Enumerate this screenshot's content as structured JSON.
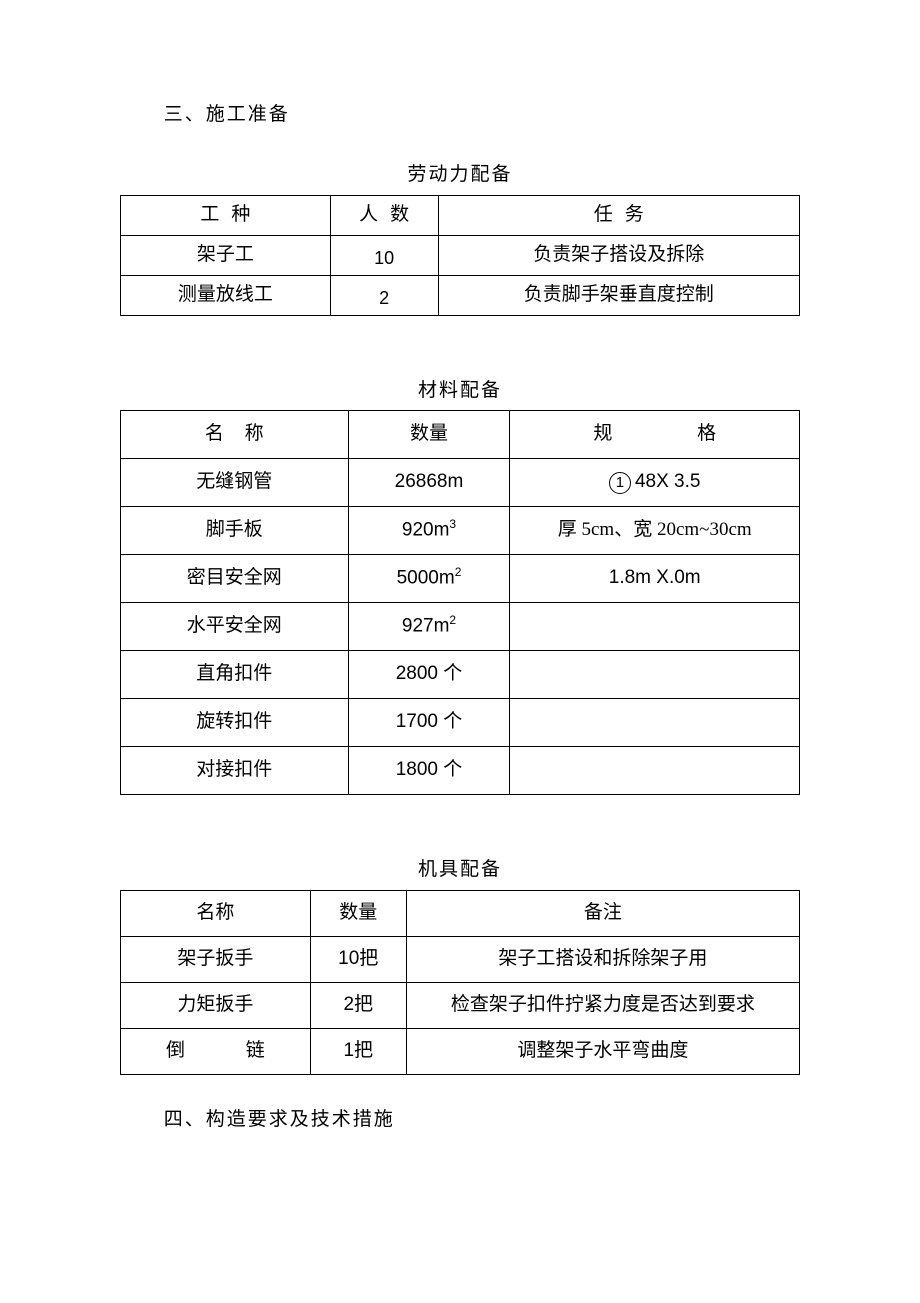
{
  "section3": {
    "heading": "三、施工准备",
    "table": {
      "title": "劳动力配备",
      "columns": [
        "工种",
        "人数",
        "任务"
      ],
      "rows": [
        {
          "type": "架子工",
          "count": "10",
          "task": "负责架子搭设及拆除"
        },
        {
          "type": "测量放线工",
          "count": "2",
          "task": "负责脚手架垂直度控制"
        }
      ]
    }
  },
  "materials": {
    "title": "材料配备",
    "columns": {
      "name": "名 称",
      "qty": "数量",
      "spec": "规    格"
    },
    "rows": [
      {
        "name": "无缝钢管",
        "qty_html": "26868m",
        "spec_circle": "1",
        "spec": "48X 3.5"
      },
      {
        "name": "脚手板",
        "qty_val": "920m",
        "qty_sup": "3",
        "spec": "厚 5cm、宽 20cm~30cm"
      },
      {
        "name": "密目安全网",
        "qty_val": "5000m",
        "qty_sup": "2",
        "spec": "1.8m X.0m"
      },
      {
        "name": "水平安全网",
        "qty_val": "927m",
        "qty_sup": "2",
        "spec": ""
      },
      {
        "name": "直角扣件",
        "qty_html": "2800 个",
        "spec": ""
      },
      {
        "name": "旋转扣件",
        "qty_html": "1700 个",
        "spec": ""
      },
      {
        "name": "对接扣件",
        "qty_html": "1800 个",
        "spec": ""
      }
    ]
  },
  "tools": {
    "title": "机具配备",
    "columns": [
      "名称",
      "数量",
      "备注"
    ],
    "rows": [
      {
        "name": "架子扳手",
        "qty": "10把",
        "note": "架子工搭设和拆除架子用"
      },
      {
        "name": "力矩扳手",
        "qty": "2把",
        "note": "检查架子扣件拧紧力度是否达到要求"
      },
      {
        "name": "倒    链",
        "qty": "1把",
        "note": "调整架子水平弯曲度",
        "spaced": true
      }
    ]
  },
  "section4": {
    "heading": "四、构造要求及技术措施"
  }
}
